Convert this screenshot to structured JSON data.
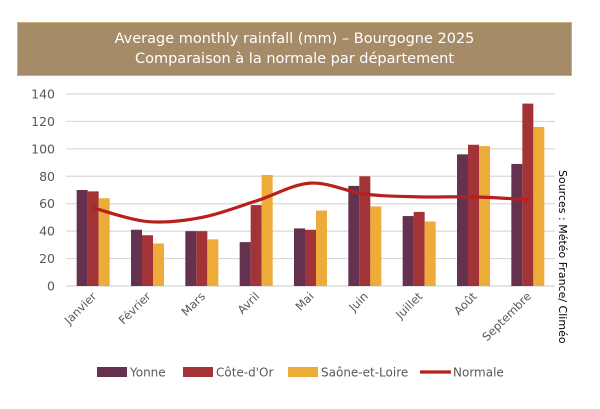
{
  "chart_data": {
    "type": "bar",
    "title": "Average monthly rainfall (mm) – Bourgogne 2025",
    "subtitle": "Comparaison à la normale par département",
    "xlabel": "",
    "ylabel": "",
    "ylim": [
      0,
      140
    ],
    "yticks": [
      "0",
      "20",
      "40",
      "60",
      "80",
      "100",
      "120",
      "140"
    ],
    "grid": true,
    "categories": [
      "Janvier",
      "Février",
      "Mars",
      "Avril",
      "Mai",
      "Juin",
      "Juillet",
      "Août",
      "Septembre"
    ],
    "series": [
      {
        "name": "Yonne",
        "type": "bar",
        "color": "#64324F",
        "values": [
          70,
          41,
          40,
          32,
          42,
          73,
          51,
          96,
          89
        ]
      },
      {
        "name": "Côte-d'Or",
        "type": "bar",
        "color": "#A23336",
        "values": [
          69,
          37,
          40,
          59,
          41,
          80,
          54,
          103,
          133
        ]
      },
      {
        "name": "Saône-et-Loire",
        "type": "bar",
        "color": "#EDAB3A",
        "values": [
          64,
          31,
          34,
          81,
          55,
          58,
          47,
          102,
          116
        ]
      },
      {
        "name": "Normale",
        "type": "line",
        "color": "#B8211B",
        "values": [
          57,
          47,
          50,
          62,
          75,
          67,
          65,
          65,
          63
        ]
      }
    ],
    "legend_position": "bottom",
    "annotation": "Sources : Météo France/ Climéo"
  }
}
